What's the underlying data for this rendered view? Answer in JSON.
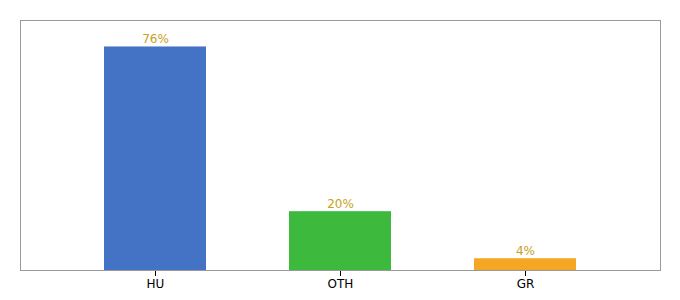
{
  "chart_data": {
    "type": "bar",
    "categories": [
      "HU",
      "OTH",
      "GR"
    ],
    "values": [
      76,
      20,
      4
    ],
    "value_labels": [
      "76%",
      "20%",
      "4%"
    ],
    "colors": [
      "#4472c4",
      "#3dba3d",
      "#f5a623"
    ],
    "ylim": [
      0,
      85
    ],
    "grid": false,
    "data_labels": true,
    "tick_labels": "x"
  }
}
